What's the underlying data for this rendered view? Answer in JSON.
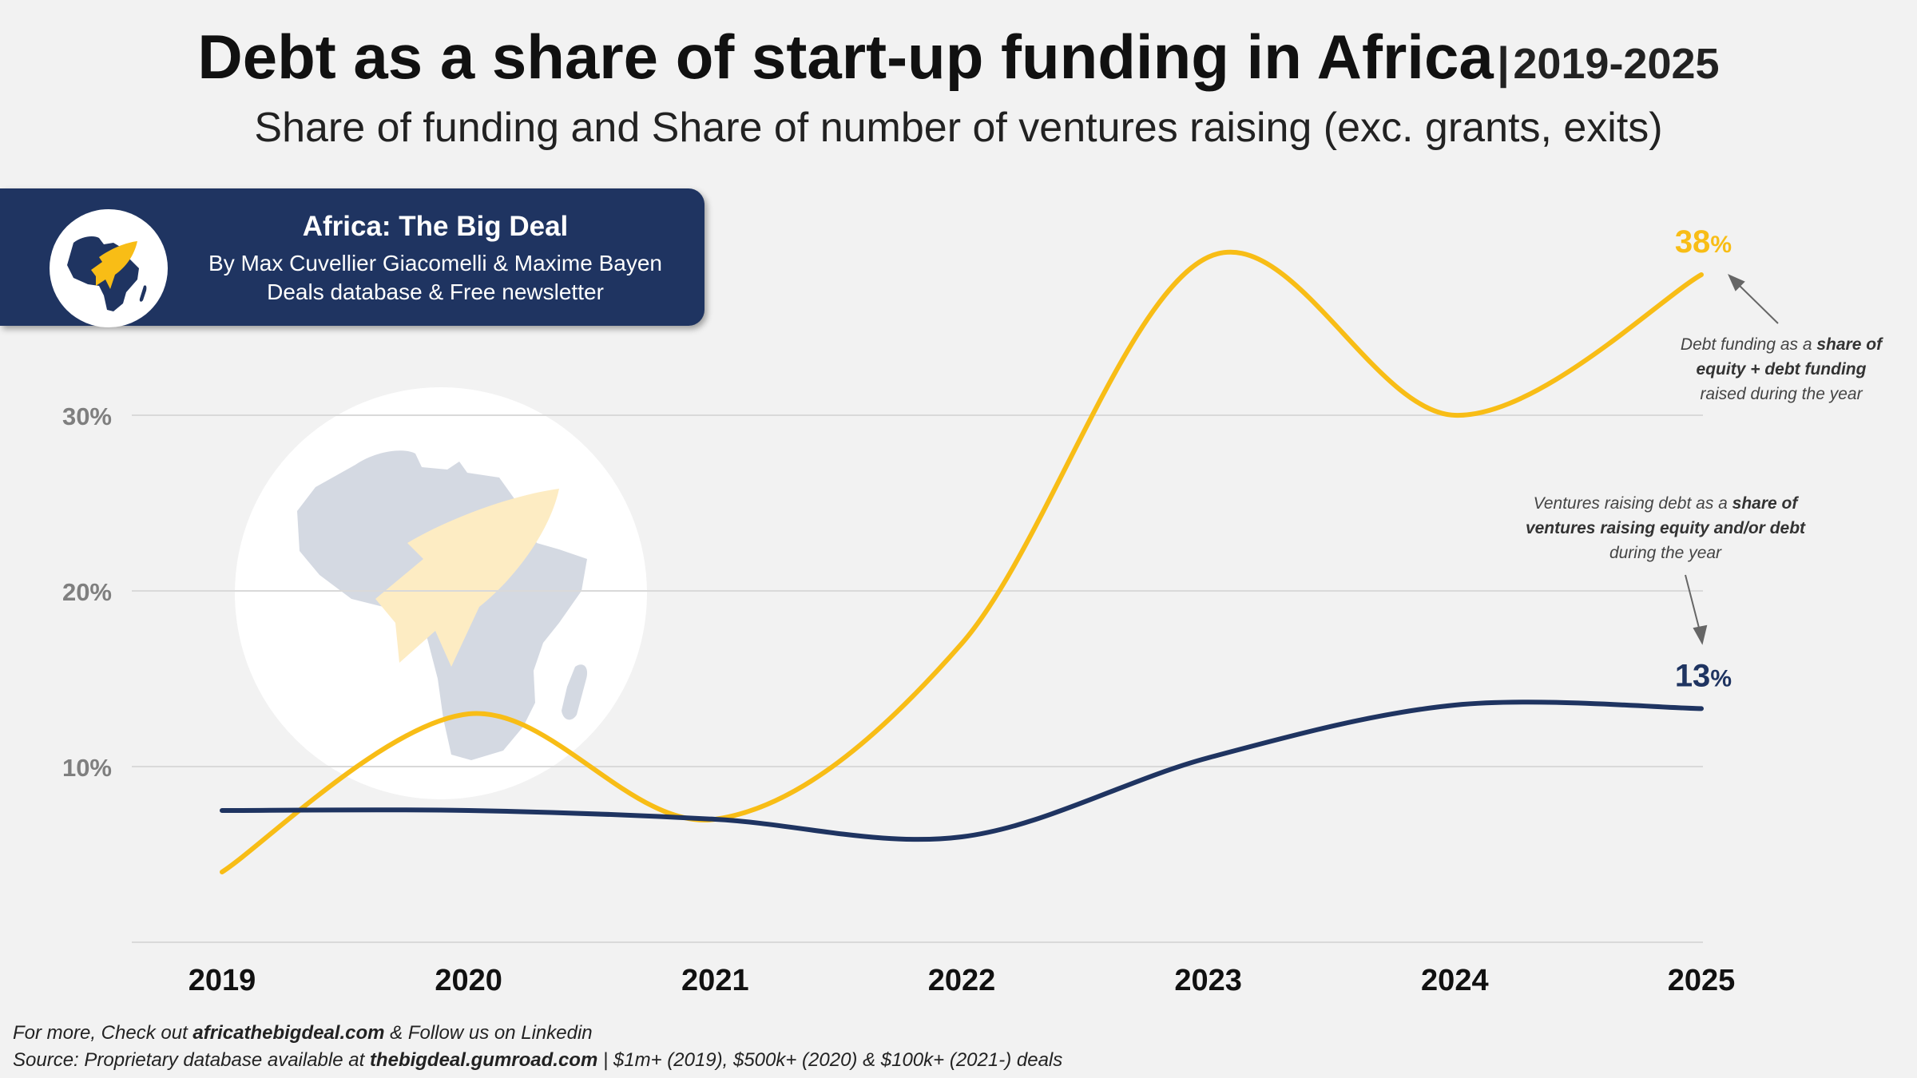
{
  "header": {
    "title": "Debt as a share of start-up funding in Africa",
    "separator": "|",
    "years": "2019-2025",
    "subtitle": "Share of funding and Share of number of ventures raising (exc. grants, exits)"
  },
  "brand": {
    "name": "Africa: The Big Deal",
    "authors": "By Max Cuvellier Giacomelli & Maxime Bayen",
    "tagline": "Deals database & Free newsletter"
  },
  "annotations": {
    "funding": {
      "pre": "Debt funding as a ",
      "bold1": "share of",
      "bold2": "equity + debt funding",
      "post": "raised during the year"
    },
    "ventures": {
      "pre": "Ventures raising debt as a ",
      "bold1": "share of",
      "bold2": "ventures raising equity and/or debt",
      "post": "during the year"
    }
  },
  "footer": {
    "line1_pre": "For more, Check out ",
    "line1_link": "africathebigdeal.com",
    "line1_post": " & Follow us on Linkedin",
    "line2_pre": "Source: Proprietary database available at ",
    "line2_link": "thebigdeal.gumroad.com",
    "line2_post": " | $1m+ (2019), $500k+ (2020) & $100k+ (2021-) deals"
  },
  "colors": {
    "funding": "#f8bd16",
    "ventures": "#1f3461",
    "brand_bg": "#1f3461",
    "background": "#f2f2f2"
  },
  "chart_data": {
    "type": "line",
    "categories": [
      "2019",
      "2020",
      "2021",
      "2022",
      "2023",
      "2024",
      "2025"
    ],
    "y_ticks": [
      "10%",
      "20%",
      "30%"
    ],
    "y_tick_values": [
      10,
      20,
      30
    ],
    "ylim": [
      0,
      40
    ],
    "grid": true,
    "series": [
      {
        "key": "funding",
        "values": [
          4,
          13,
          7,
          17,
          39,
          30,
          38
        ],
        "end_label": "38",
        "end_unit": "%"
      },
      {
        "key": "ventures",
        "values": [
          7.5,
          7.5,
          7,
          6,
          10.5,
          13.5,
          13.3
        ],
        "end_label": "13",
        "end_unit": "%"
      }
    ]
  }
}
